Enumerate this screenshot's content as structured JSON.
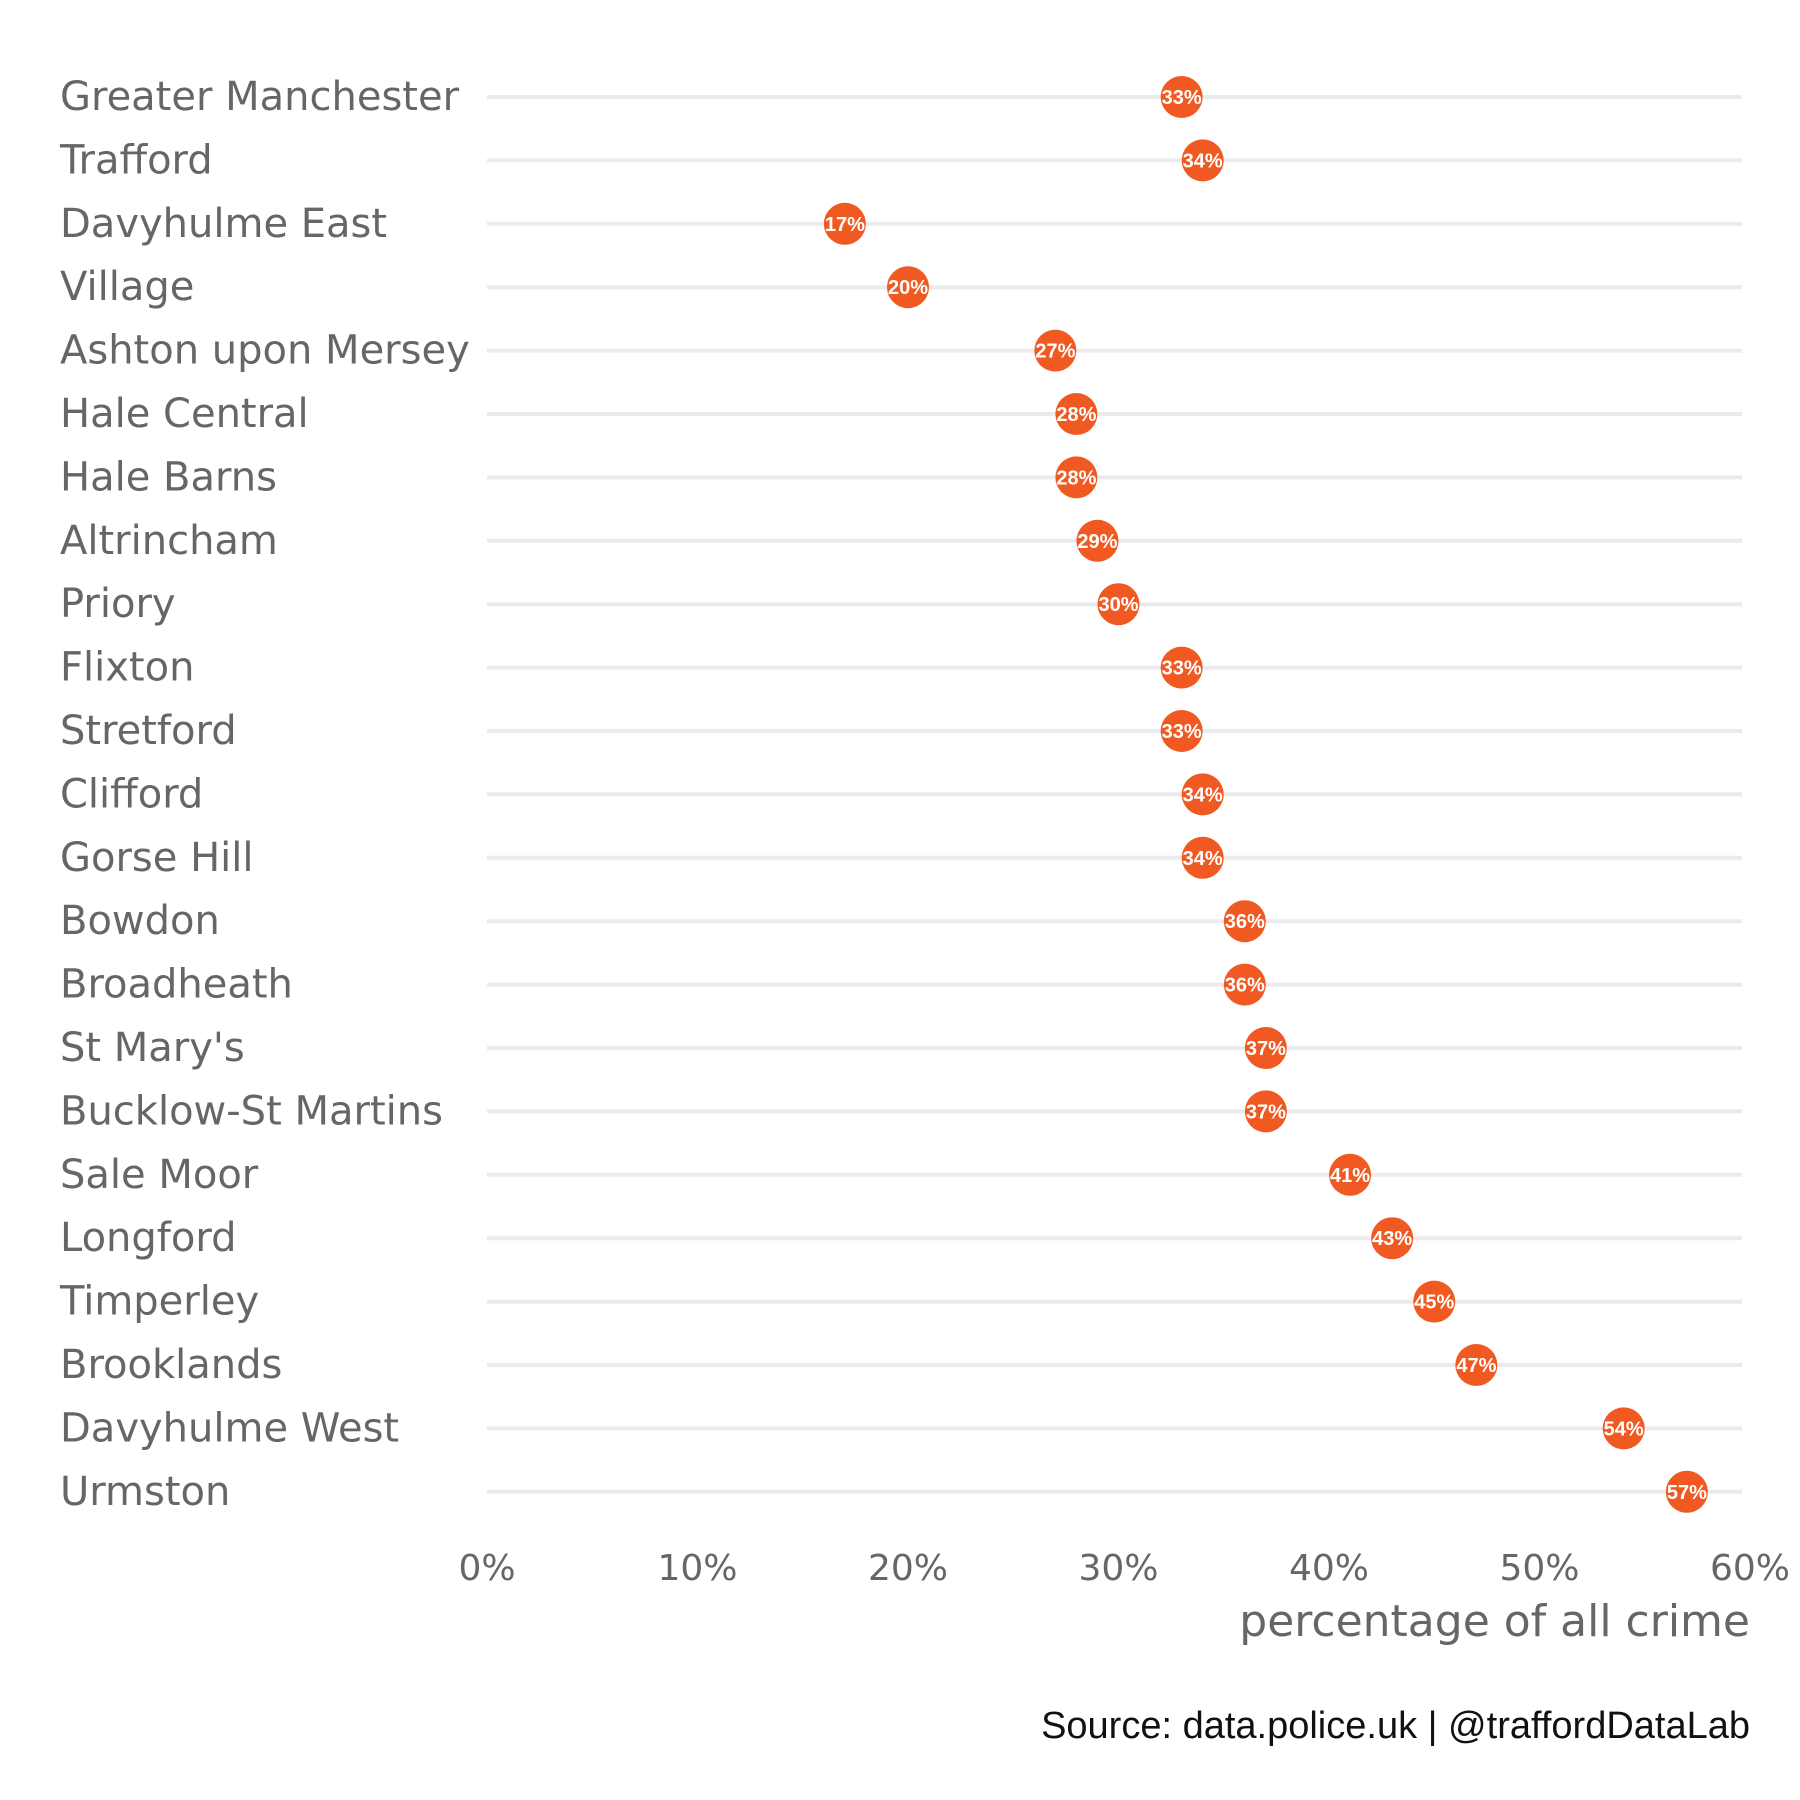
{
  "chart_data": {
    "type": "lollipop",
    "categories": [
      "Greater Manchester",
      "Trafford",
      "Davyhulme East",
      "Village",
      "Ashton upon Mersey",
      "Hale Central",
      "Hale Barns",
      "Altrincham",
      "Priory",
      "Flixton",
      "Stretford",
      "Clifford",
      "Gorse Hill",
      "Bowdon",
      "Broadheath",
      "St Mary's",
      "Bucklow-St Martins",
      "Sale Moor",
      "Longford",
      "Timperley",
      "Brooklands",
      "Davyhulme West",
      "Urmston"
    ],
    "values": [
      33,
      34,
      17,
      20,
      27,
      28,
      28,
      29,
      30,
      33,
      33,
      34,
      34,
      36,
      36,
      37,
      37,
      41,
      43,
      45,
      47,
      54,
      57
    ],
    "data_labels": [
      "33%",
      "34%",
      "17%",
      "20%",
      "27%",
      "28%",
      "28%",
      "29%",
      "30%",
      "33%",
      "33%",
      "34%",
      "34%",
      "36%",
      "36%",
      "37%",
      "37%",
      "41%",
      "43%",
      "45%",
      "47%",
      "54%",
      "57%"
    ],
    "xlabel": "percentage of all crime",
    "xlim": [
      0,
      60
    ],
    "xticks": [
      0,
      10,
      20,
      30,
      40,
      50,
      60
    ],
    "xtick_labels": [
      "0%",
      "10%",
      "20%",
      "30%",
      "40%",
      "50%",
      "60%"
    ],
    "grid": false,
    "colors": {
      "point": "#f05a22",
      "stem": "#ebebeb",
      "text": "#666666"
    }
  },
  "caption": "Source: data.police.uk  |  @traffordDataLab"
}
